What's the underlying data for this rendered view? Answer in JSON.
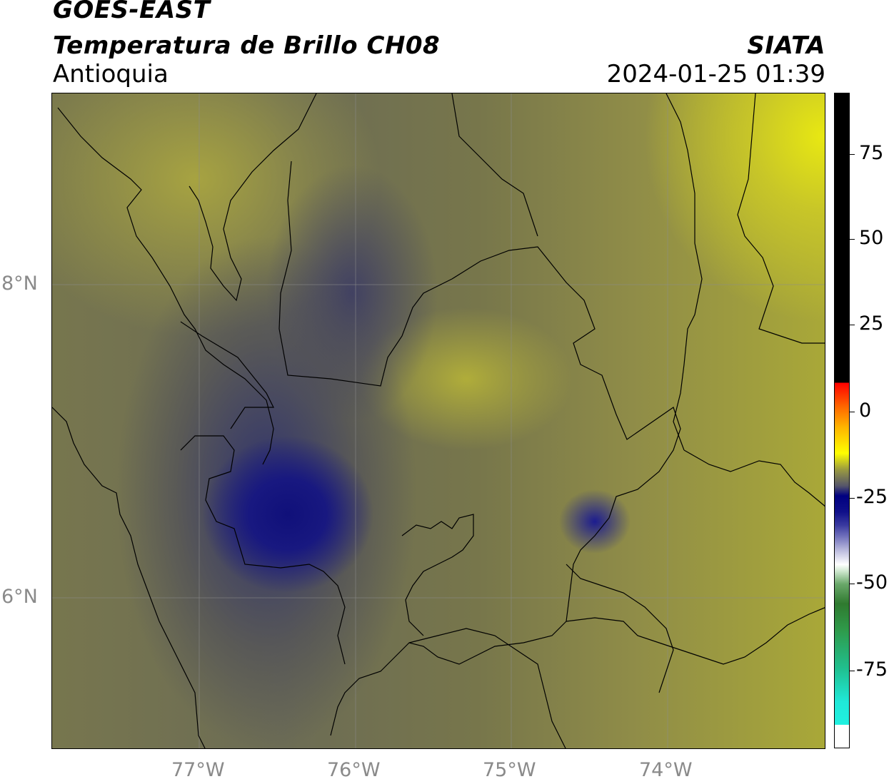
{
  "header": {
    "satellite": "GOES-EAST",
    "product": "Temperatura de Brillo CH08",
    "region": "Antioquia",
    "org": "SIATA",
    "datetime": "2024-01-25 01:39"
  },
  "map": {
    "lat_ticks": [
      "8°N",
      "6°N"
    ],
    "lon_ticks": [
      "77°W",
      "76°W",
      "75°W",
      "74°W"
    ]
  },
  "colorbar": {
    "ticks": [
      "75",
      "50",
      "25",
      "0",
      "-25",
      "-50",
      "-75"
    ]
  }
}
